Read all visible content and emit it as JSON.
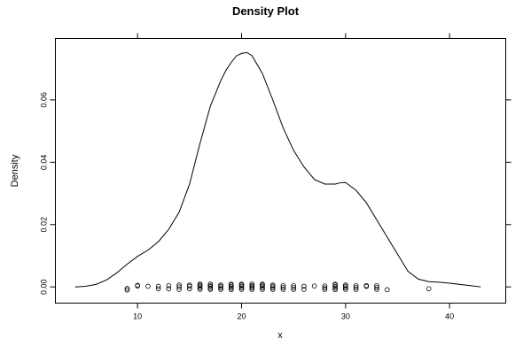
{
  "chart_data": {
    "type": "line",
    "title": "Density Plot",
    "xlabel": "x",
    "ylabel": "Density",
    "xlim": [
      2.1,
      45.4
    ],
    "ylim": [
      -0.0052,
      0.0797
    ],
    "x_ticks": [
      10,
      20,
      30,
      40
    ],
    "y_ticks": [
      0.0,
      0.02,
      0.04,
      0.06
    ],
    "y_tick_labels": [
      "0.00",
      "0.02",
      "0.04",
      "0.06"
    ],
    "grid": false,
    "series": [
      {
        "kind": "density",
        "x": [
          4,
          5,
          6,
          7,
          8,
          9,
          10,
          11,
          12,
          13,
          14,
          15,
          16,
          17,
          18,
          18.5,
          19,
          19.5,
          20,
          20.5,
          21,
          22,
          23,
          24,
          25,
          26,
          27,
          28,
          29,
          29.5,
          30,
          31,
          32,
          33,
          34,
          35,
          36,
          37,
          38,
          39,
          40,
          41,
          42,
          43
        ],
        "y": [
          0.0,
          0.0002,
          0.0008,
          0.0022,
          0.0045,
          0.0073,
          0.0098,
          0.0118,
          0.0145,
          0.0185,
          0.024,
          0.033,
          0.046,
          0.058,
          0.0662,
          0.0695,
          0.072,
          0.0741,
          0.0749,
          0.0752,
          0.0742,
          0.0685,
          0.06,
          0.051,
          0.0438,
          0.0385,
          0.0345,
          0.033,
          0.033,
          0.0334,
          0.0335,
          0.031,
          0.027,
          0.0215,
          0.016,
          0.0105,
          0.005,
          0.0025,
          0.0017,
          0.0015,
          0.0012,
          0.0008,
          0.0004,
          0.0
        ]
      },
      {
        "kind": "rug",
        "points": [
          [
            9,
            -0.001
          ],
          [
            9,
            -0.0005
          ],
          [
            10,
            0.0003
          ],
          [
            10,
            0.0005
          ],
          [
            11,
            0.0002
          ],
          [
            12,
            -0.0006
          ],
          [
            12,
            0.0002
          ],
          [
            13,
            -0.0006
          ],
          [
            13,
            0.0004
          ],
          [
            14,
            0.0
          ],
          [
            14,
            -0.0008
          ],
          [
            14,
            0.0006
          ],
          [
            15,
            -0.0006
          ],
          [
            15,
            0.0002
          ],
          [
            15,
            0.0006
          ],
          [
            16,
            -0.0008
          ],
          [
            16,
            -0.0003
          ],
          [
            16,
            0.0002
          ],
          [
            16,
            0.0006
          ],
          [
            16,
            0.0009
          ],
          [
            17,
            -0.0008
          ],
          [
            17,
            -0.0004
          ],
          [
            17,
            0.0001
          ],
          [
            17,
            0.0005
          ],
          [
            17,
            0.0009
          ],
          [
            18,
            -0.0008
          ],
          [
            18,
            -0.0003
          ],
          [
            18,
            0.0002
          ],
          [
            18,
            0.0006
          ],
          [
            19,
            -0.0009
          ],
          [
            19,
            -0.0004
          ],
          [
            19,
            0.0001
          ],
          [
            19,
            0.0006
          ],
          [
            19,
            0.0009
          ],
          [
            20,
            -0.0008
          ],
          [
            20,
            -0.0003
          ],
          [
            20,
            0.0002
          ],
          [
            20,
            0.0006
          ],
          [
            20,
            0.0009
          ],
          [
            21,
            -0.0008
          ],
          [
            21,
            -0.0003
          ],
          [
            21,
            0.0001
          ],
          [
            21,
            0.0005
          ],
          [
            21,
            0.0009
          ],
          [
            22,
            -0.0008
          ],
          [
            22,
            -0.0003
          ],
          [
            22,
            0.0002
          ],
          [
            22,
            0.0006
          ],
          [
            22,
            0.0009
          ],
          [
            23,
            -0.0008
          ],
          [
            23,
            -0.0003
          ],
          [
            23,
            0.0002
          ],
          [
            23,
            0.0006
          ],
          [
            24,
            -0.0008
          ],
          [
            24,
            -0.0002
          ],
          [
            24,
            0.0004
          ],
          [
            25,
            -0.0008
          ],
          [
            25,
            -0.0002
          ],
          [
            25,
            0.0004
          ],
          [
            26,
            -0.0008
          ],
          [
            26,
            0.0002
          ],
          [
            27,
            0.0003
          ],
          [
            28,
            -0.0008
          ],
          [
            28,
            -0.0003
          ],
          [
            28,
            0.0003
          ],
          [
            29,
            -0.0009
          ],
          [
            29,
            -0.0004
          ],
          [
            29,
            0.0001
          ],
          [
            29,
            0.0006
          ],
          [
            29,
            0.0009
          ],
          [
            30,
            -0.0008
          ],
          [
            30,
            -0.0003
          ],
          [
            30,
            0.0002
          ],
          [
            30,
            0.0006
          ],
          [
            31,
            -0.0008
          ],
          [
            31,
            -0.0002
          ],
          [
            31,
            0.0004
          ],
          [
            32,
            0.0002
          ],
          [
            32,
            0.0004
          ],
          [
            33,
            -0.0008
          ],
          [
            33,
            -0.0002
          ],
          [
            33,
            0.0004
          ],
          [
            34,
            -0.0009
          ],
          [
            38,
            -0.0006
          ]
        ]
      }
    ]
  }
}
